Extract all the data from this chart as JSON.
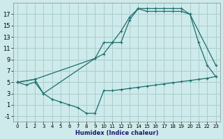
{
  "xlabel": "Humidex (Indice chaleur)",
  "bg_color": "#ceeaea",
  "grid_color": "#aacece",
  "line_color": "#1a6e6e",
  "xlim": [
    -0.5,
    23.5
  ],
  "ylim": [
    -2,
    19
  ],
  "xticks": [
    0,
    1,
    2,
    3,
    4,
    5,
    6,
    7,
    8,
    9,
    10,
    11,
    12,
    13,
    14,
    15,
    16,
    17,
    18,
    19,
    20,
    21,
    22,
    23
  ],
  "yticks": [
    -1,
    1,
    3,
    5,
    7,
    9,
    11,
    13,
    15,
    17
  ],
  "line1_x": [
    0,
    1,
    2,
    3,
    4,
    5,
    6,
    7,
    8,
    9,
    10,
    11,
    12,
    13,
    14,
    15,
    16,
    17,
    18,
    19,
    20,
    21,
    22,
    23
  ],
  "line1_y": [
    5,
    4.5,
    5,
    3,
    2,
    1.5,
    1,
    0.5,
    -0.5,
    -0.5,
    3.5,
    3.5,
    3.7,
    3.9,
    4.1,
    4.3,
    4.5,
    4.7,
    4.9,
    5.1,
    5.3,
    5.5,
    5.7,
    6.0
  ],
  "line2_x": [
    0,
    2,
    3,
    9,
    10,
    11,
    12,
    13,
    14,
    15,
    16,
    17,
    18,
    19,
    20,
    23
  ],
  "line2_y": [
    5,
    5.5,
    3,
    9.2,
    12,
    12,
    14,
    16.5,
    18,
    17.5,
    17.5,
    17.5,
    17.5,
    17.5,
    17,
    8
  ],
  "line3_x": [
    0,
    2,
    9,
    10,
    11,
    12,
    13,
    14,
    15,
    16,
    17,
    18,
    19,
    20,
    21,
    22,
    23
  ],
  "line3_y": [
    5,
    5.5,
    9.2,
    10,
    12,
    12,
    16,
    18,
    18,
    18,
    18,
    18,
    18,
    17,
    12,
    8,
    6
  ]
}
